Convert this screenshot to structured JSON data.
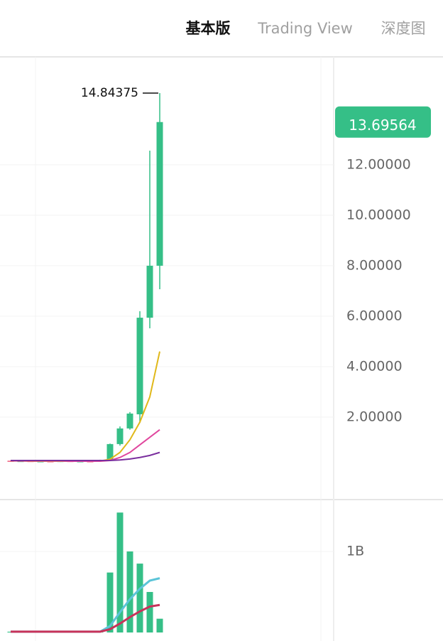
{
  "tabs": [
    "基本版",
    "Trading View",
    "深度图"
  ],
  "chart_data": [
    {
      "type": "candlestick",
      "open": [
        0.27,
        0.25,
        0.26,
        0.24,
        0.25,
        0.23,
        0.26,
        0.24,
        0.25,
        0.24,
        0.31,
        0.93,
        1.55,
        2.11,
        5.94,
        8.0
      ],
      "close": [
        0.25,
        0.26,
        0.24,
        0.25,
        0.23,
        0.26,
        0.24,
        0.25,
        0.24,
        0.3,
        0.93,
        1.55,
        2.14,
        5.94,
        8.0,
        13.69564
      ],
      "high": [
        0.28,
        0.27,
        0.27,
        0.26,
        0.26,
        0.27,
        0.27,
        0.26,
        0.26,
        0.31,
        0.95,
        1.63,
        2.2,
        6.2,
        12.56,
        14.84375
      ],
      "low": [
        0.24,
        0.24,
        0.23,
        0.23,
        0.22,
        0.22,
        0.23,
        0.23,
        0.23,
        0.23,
        0.3,
        0.87,
        1.5,
        1.77,
        5.52,
        7.07
      ],
      "up_color": "#35bf87",
      "down_color": "#ee5a7c",
      "series": [
        {
          "color": "#e0b81a",
          "values": [
            0.26,
            0.26,
            0.25,
            0.25,
            0.25,
            0.25,
            0.25,
            0.25,
            0.25,
            0.26,
            0.33,
            0.6,
            1.1,
            1.8,
            2.8,
            4.6
          ]
        },
        {
          "color": "#e0479e",
          "values": [
            0.27,
            0.26,
            0.26,
            0.26,
            0.26,
            0.26,
            0.25,
            0.25,
            0.25,
            0.25,
            0.28,
            0.4,
            0.6,
            0.9,
            1.2,
            1.5
          ]
        },
        {
          "color": "#7a2f9e",
          "values": [
            0.28,
            0.28,
            0.28,
            0.28,
            0.28,
            0.28,
            0.28,
            0.28,
            0.28,
            0.28,
            0.28,
            0.3,
            0.34,
            0.4,
            0.48,
            0.6
          ]
        }
      ],
      "ylim": [
        -1.27,
        16.28
      ],
      "yticks": [
        {
          "value": 2,
          "label": "2.00000"
        },
        {
          "value": 4,
          "label": "4.00000"
        },
        {
          "value": 6,
          "label": "6.00000"
        },
        {
          "value": 8,
          "label": "8.00000"
        },
        {
          "value": 10,
          "label": "10.00000"
        },
        {
          "value": 12,
          "label": "12.00000"
        }
      ],
      "grid": true
    },
    {
      "type": "bar",
      "values": [
        10000000,
        10000000,
        10000000,
        10000000,
        10000000,
        10000000,
        10000000,
        10000000,
        10000000,
        10000000,
        740000000,
        1480000000,
        1000000000,
        850000000,
        500000000,
        170000000
      ],
      "color": "#35bf87",
      "series": [
        {
          "color": "#5bc4d8",
          "values": [
            10000000,
            10000000,
            10000000,
            10000000,
            10000000,
            10000000,
            10000000,
            10000000,
            10000000,
            10000000,
            80000000,
            250000000,
            410000000,
            540000000,
            640000000,
            670000000
          ]
        },
        {
          "color": "#c8325a",
          "values": [
            10000000,
            10000000,
            10000000,
            10000000,
            10000000,
            10000000,
            10000000,
            10000000,
            10000000,
            10000000,
            40000000,
            110000000,
            190000000,
            260000000,
            320000000,
            340000000
          ]
        }
      ],
      "ylim": [
        -105000000,
        1640000000
      ],
      "yticks": [
        {
          "value": 1000000000,
          "label": "1B"
        }
      ],
      "grid": true
    }
  ]
}
